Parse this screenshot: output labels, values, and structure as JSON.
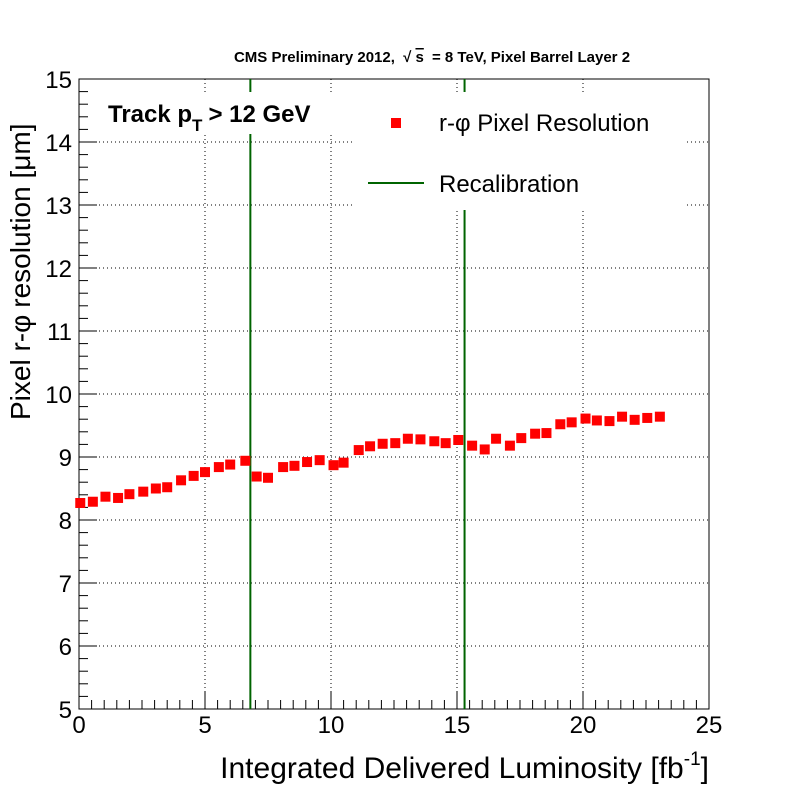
{
  "colors": {
    "marker": "#ff0000",
    "recalibration_line": "#006400",
    "axis": "#000000",
    "grid": "#000000",
    "background": "#ffffff"
  },
  "chart_data": {
    "type": "scatter",
    "title": {
      "prefix": "CMS Preliminary 2012,",
      "sqrt_symbol": "√",
      "sqrt_arg": "s",
      "suffix": "= 8 TeV, Pixel Barrel Layer 2"
    },
    "annotation": {
      "text_before": "Track p",
      "subscript": "T",
      "text_after": "> 12 GeV"
    },
    "xlabel": {
      "text": "Integrated Delivered Luminosity [fb",
      "superscript": "-1",
      "close": "]"
    },
    "ylabel": {
      "text_before": "Pixel r-",
      "phi": "φ",
      "text_middle": "resolution [",
      "mu": "μ",
      "text_after": "m]"
    },
    "xlim": [
      0,
      25
    ],
    "ylim": [
      5,
      15
    ],
    "x_ticks": [
      "0",
      "5",
      "10",
      "15",
      "20",
      "25"
    ],
    "x_tick_values": [
      0,
      5,
      10,
      15,
      20,
      25
    ],
    "y_ticks": [
      "5",
      "6",
      "7",
      "8",
      "9",
      "10",
      "11",
      "12",
      "13",
      "14",
      "15"
    ],
    "y_tick_values": [
      5,
      6,
      7,
      8,
      9,
      10,
      11,
      12,
      13,
      14,
      15
    ],
    "grid": true,
    "legend": {
      "position": "top-right",
      "entries": [
        {
          "label_prefix": "r-",
          "label_phi": "φ",
          "label_suffix": " Pixel Resolution",
          "marker": "square"
        },
        {
          "label": "Recalibration",
          "marker": "line"
        }
      ]
    },
    "recalibration_x": [
      6.8,
      15.3
    ],
    "series": [
      {
        "name": "r-φ Pixel Resolution",
        "x": [
          0.05,
          0.55,
          1.05,
          1.55,
          2.0,
          2.55,
          3.05,
          3.5,
          4.05,
          4.55,
          5.0,
          5.55,
          6.0,
          6.6,
          7.05,
          7.5,
          8.1,
          8.55,
          9.05,
          9.55,
          10.1,
          10.5,
          11.1,
          11.55,
          12.05,
          12.55,
          13.05,
          13.55,
          14.1,
          14.55,
          15.05,
          15.6,
          16.1,
          16.55,
          17.1,
          17.55,
          18.1,
          18.55,
          19.1,
          19.55,
          20.1,
          20.55,
          21.05,
          21.55,
          22.05,
          22.55,
          23.05
        ],
        "y": [
          8.27,
          8.29,
          8.37,
          8.35,
          8.41,
          8.45,
          8.5,
          8.52,
          8.63,
          8.7,
          8.76,
          8.84,
          8.88,
          8.94,
          8.69,
          8.67,
          8.84,
          8.86,
          8.92,
          8.95,
          8.87,
          8.91,
          9.11,
          9.17,
          9.21,
          9.22,
          9.29,
          9.28,
          9.25,
          9.22,
          9.27,
          9.18,
          9.12,
          9.29,
          9.18,
          9.3,
          9.37,
          9.38,
          9.52,
          9.55,
          9.61,
          9.58,
          9.57,
          9.64,
          9.59,
          9.62,
          9.64
        ]
      }
    ]
  }
}
